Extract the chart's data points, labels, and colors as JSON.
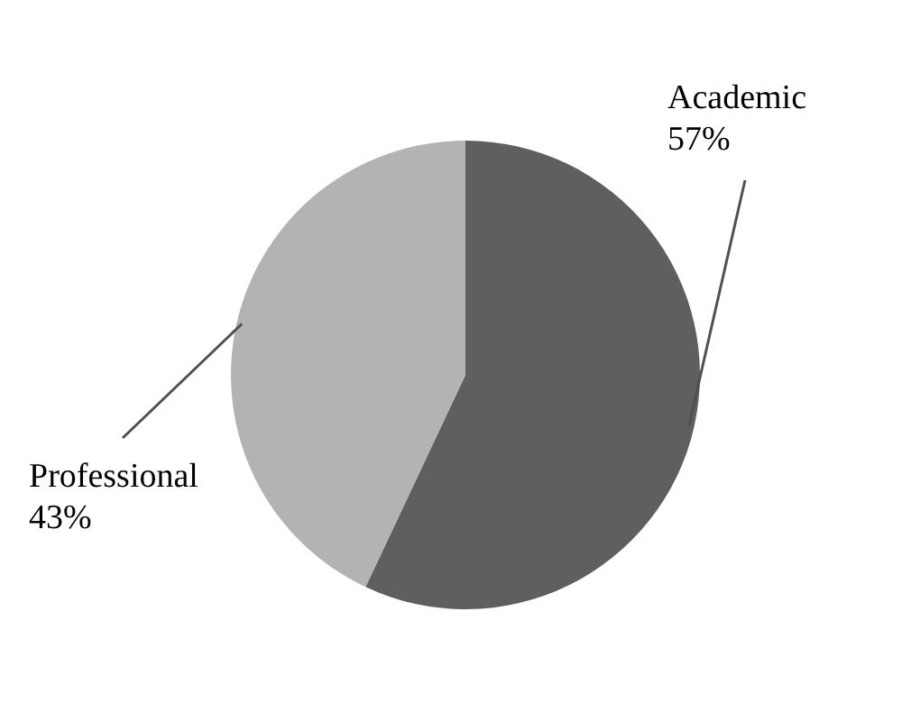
{
  "chart_data": {
    "type": "pie",
    "categories": [
      "Academic",
      "Professional"
    ],
    "values": [
      57,
      43
    ],
    "colors": [
      "#5f5f5f",
      "#b3b3b3"
    ],
    "value_labels": [
      "57%",
      "43%"
    ]
  }
}
